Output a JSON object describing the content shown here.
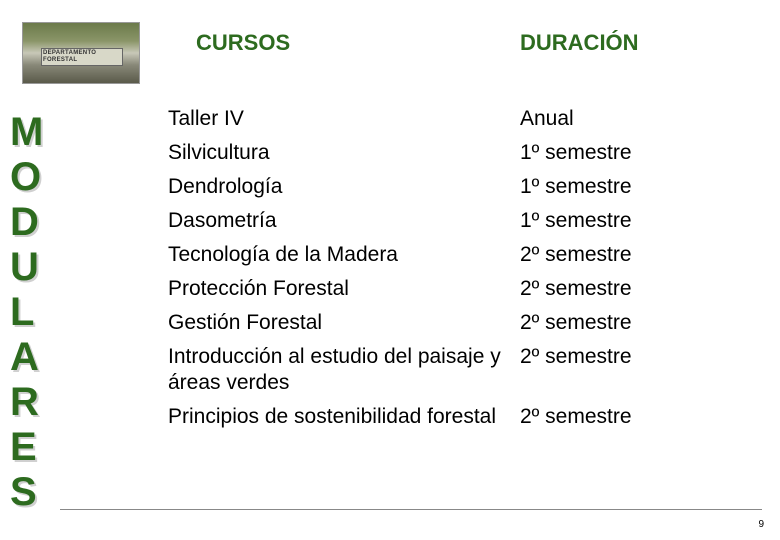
{
  "thumbnail": {
    "label_line1": "DEPARTAMENTO",
    "label_line2": "FORESTAL"
  },
  "vertical_word": {
    "letters": [
      "M",
      "O",
      "D",
      "U",
      "L",
      "A",
      "R",
      "E",
      "S"
    ],
    "color": "#2d6b1f",
    "shadow_color": "#d0d0d0",
    "fontsize": 40
  },
  "headers": {
    "cursos": "CURSOS",
    "duracion": "DURACIÓN",
    "color": "#2d6b1f",
    "fontsize": 22
  },
  "courses": [
    {
      "name": "Taller IV",
      "duration": "Anual"
    },
    {
      "name": "Silvicultura",
      "duration": "1º semestre"
    },
    {
      "name": "Dendrología",
      "duration": "1º semestre"
    },
    {
      "name": "Dasometría",
      "duration": "1º semestre"
    },
    {
      "name": "Tecnología de la Madera",
      "duration": "2º semestre"
    },
    {
      "name": "Protección Forestal",
      "duration": "2º semestre"
    },
    {
      "name": "Gestión  Forestal",
      "duration": "2º semestre"
    },
    {
      "name": "Introducción al estudio del paisaje y áreas verdes",
      "duration": "2º semestre"
    },
    {
      "name": "Principios de sostenibilidad forestal",
      "duration": "2º semestre"
    }
  ],
  "table_style": {
    "text_color": "#000000",
    "fontsize": 21,
    "row_gap": 8,
    "name_col_width": 352
  },
  "divider": {
    "color": "#888888"
  },
  "page_number": "9",
  "background_color": "#ffffff"
}
